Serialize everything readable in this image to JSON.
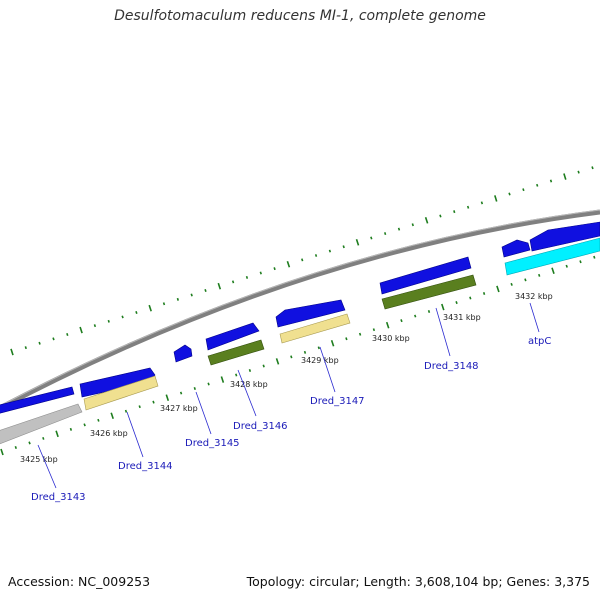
{
  "title": "Desulfotomaculum reducens MI-1, complete genome",
  "footer": {
    "accession": "Accession: NC_009253",
    "summary": "Topology: circular; Length: 3,608,104 bp; Genes: 3,375"
  },
  "colors": {
    "backbone": "#808080",
    "cds_blue": "#1010e0",
    "cds_gray": "#c0c0c0",
    "cds_khaki": "#f0e090",
    "cds_olive": "#5a7f1f",
    "cds_cyan": "#00f0ff",
    "gc_ticks": "#1e7d1e",
    "gene_label": "#1a1ab8",
    "ruler_label": "#222222"
  },
  "ruler": [
    {
      "label": "3425 kbp"
    },
    {
      "label": "3426 kbp"
    },
    {
      "label": "3427 kbp"
    },
    {
      "label": "3428 kbp"
    },
    {
      "label": "3429 kbp"
    },
    {
      "label": "3430 kbp"
    },
    {
      "label": "3431 kbp"
    },
    {
      "label": "3432 kbp"
    }
  ],
  "genes": [
    {
      "name": "Dred_3143"
    },
    {
      "name": "Dred_3144"
    },
    {
      "name": "Dred_3145"
    },
    {
      "name": "Dred_3146"
    },
    {
      "name": "Dred_3147"
    },
    {
      "name": "Dred_3148"
    },
    {
      "name": "atpC"
    }
  ]
}
